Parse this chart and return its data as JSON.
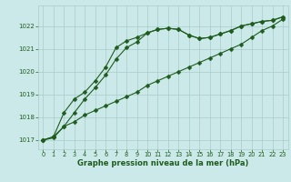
{
  "x": [
    0,
    1,
    2,
    3,
    4,
    5,
    6,
    7,
    8,
    9,
    10,
    11,
    12,
    13,
    14,
    15,
    16,
    17,
    18,
    19,
    20,
    21,
    22,
    23
  ],
  "line1": [
    1017.0,
    1017.1,
    1017.6,
    1017.8,
    1018.1,
    1018.3,
    1018.5,
    1018.7,
    1018.9,
    1019.1,
    1019.4,
    1019.6,
    1019.8,
    1020.0,
    1020.2,
    1020.4,
    1020.6,
    1020.8,
    1021.0,
    1021.2,
    1021.5,
    1021.8,
    1022.0,
    1022.3
  ],
  "line2": [
    1017.0,
    1017.15,
    1018.2,
    1018.8,
    1019.1,
    1019.6,
    1020.2,
    1021.05,
    1021.35,
    1021.5,
    1021.7,
    1021.85,
    1021.9,
    1021.85,
    1021.6,
    1021.45,
    1021.5,
    1021.65,
    1021.8,
    1022.0,
    1022.1,
    1022.2,
    1022.25,
    1022.4
  ],
  "line3": [
    1017.0,
    1017.15,
    1017.6,
    1018.2,
    1018.8,
    1019.3,
    1019.85,
    1020.55,
    1021.05,
    1021.3,
    1021.7,
    1021.85,
    1021.9,
    1021.85,
    1021.6,
    1021.45,
    1021.5,
    1021.65,
    1021.8,
    1022.0,
    1022.1,
    1022.2,
    1022.25,
    1022.4
  ],
  "bg_color": "#cce9e9",
  "grid_color": "#aacccc",
  "line_color": "#1e5c1e",
  "marker": "D",
  "xlabel": "Graphe pression niveau de la mer (hPa)",
  "ylim": [
    1016.6,
    1022.9
  ],
  "yticks": [
    1017,
    1018,
    1019,
    1020,
    1021,
    1022
  ],
  "xlim": [
    -0.5,
    23.5
  ],
  "xticks": [
    0,
    1,
    2,
    3,
    4,
    5,
    6,
    7,
    8,
    9,
    10,
    11,
    12,
    13,
    14,
    15,
    16,
    17,
    18,
    19,
    20,
    21,
    22,
    23
  ],
  "marker_size": 2.5,
  "line_width": 0.8
}
